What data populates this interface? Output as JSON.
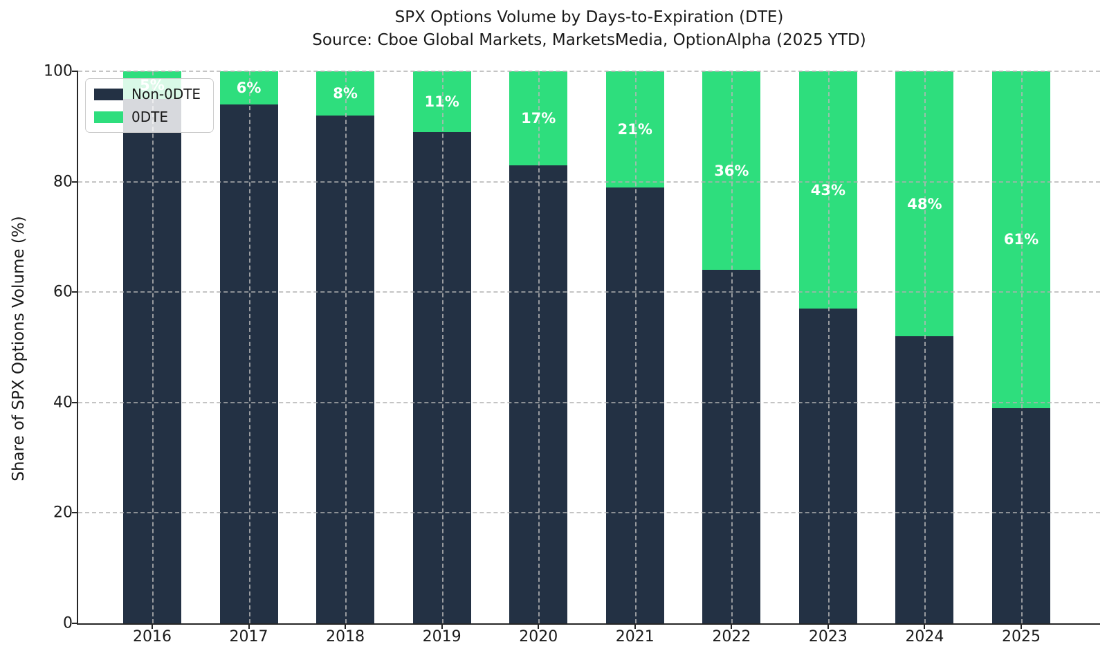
{
  "title": "SPX Options Volume by Days-to-Expiration (DTE)",
  "subtitle": "Source: Cboe Global Markets, MarketsMedia, OptionAlpha (2025 YTD)",
  "chart_data": {
    "type": "bar",
    "stacked": true,
    "title": "SPX Options Volume by Days-to-Expiration (DTE)",
    "subtitle": "Source: Cboe Global Markets, MarketsMedia, OptionAlpha (2025 YTD)",
    "categories": [
      "2016",
      "2017",
      "2018",
      "2019",
      "2020",
      "2021",
      "2022",
      "2023",
      "2024",
      "2025"
    ],
    "series": [
      {
        "name": "Non-0DTE",
        "color": "#233144",
        "values": [
          95,
          94,
          92,
          89,
          83,
          79,
          64,
          57,
          52,
          39
        ]
      },
      {
        "name": "0DTE",
        "color": "#2ede7d",
        "values": [
          5,
          6,
          8,
          11,
          17,
          21,
          36,
          43,
          48,
          61
        ],
        "labels": [
          "5%",
          "6%",
          "8%",
          "11%",
          "17%",
          "21%",
          "36%",
          "43%",
          "48%",
          "61%"
        ]
      }
    ],
    "xlabel": "",
    "ylabel": "Share of SPX Options Volume (%)",
    "ylim": [
      0,
      100
    ],
    "yticks": [
      0,
      20,
      40,
      60,
      80,
      100
    ],
    "grid": true,
    "legend_position": "upper left",
    "label_color": "#ffffff",
    "grid_color": "#b8b8b8",
    "spine_color": "#262626"
  }
}
